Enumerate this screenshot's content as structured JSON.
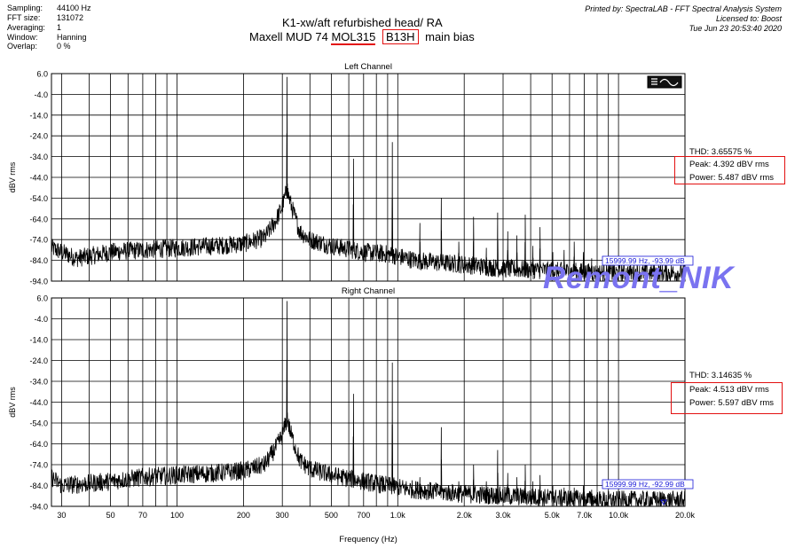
{
  "header": {
    "info": [
      {
        "label": "Sampling:",
        "value": "44100 Hz"
      },
      {
        "label": "FFT size:",
        "value": "131072"
      },
      {
        "label": "Averaging:",
        "value": "1"
      },
      {
        "label": "Window:",
        "value": "Hanning"
      },
      {
        "label": "Overlap:",
        "value": "0 %"
      }
    ],
    "title_line1": "K1-xw/aft refurbished head/ RA",
    "title_line2_prefix": "Maxell MUD 74 ",
    "title_line2_mol": "MOL315",
    "title_line2_b13h": "B13H",
    "title_line2_suffix": "main bias",
    "printed_by": "Printed by: SpectraLAB - FFT Spectral Analysis System",
    "licensed_to": "Licensed to: Boost",
    "timestamp": "Tue Jun 23 20:53:40 2020"
  },
  "watermark": "Remont_NIK",
  "colors": {
    "trace": "#000000",
    "grid": "#000000",
    "highlight_box": "#e31010",
    "watermark": "#7a73f0",
    "cursor_label": "#1a1ad8"
  },
  "chart_data": [
    {
      "type": "line",
      "title": "Left Channel",
      "xlabel": "Frequency (Hz)",
      "ylabel": "dBV rms",
      "x_scale": "log",
      "xlim": [
        27,
        20000
      ],
      "ylim": [
        -94,
        6
      ],
      "yticks": [
        6.0,
        -4.0,
        -14.0,
        -24.0,
        -34.0,
        -44.0,
        -54.0,
        -64.0,
        -74.0,
        -84.0,
        -94.0
      ],
      "ytick_labels": [
        "6.0",
        "-4.0",
        "-14.0",
        "-24.0",
        "-34.0",
        "-44.0",
        "-54.0",
        "-64.0",
        "-74.0",
        "-84.0",
        "-94.0"
      ],
      "grid": true,
      "floor": [
        [
          27,
          -78
        ],
        [
          30,
          -80
        ],
        [
          35,
          -83
        ],
        [
          40,
          -82
        ],
        [
          50,
          -80
        ],
        [
          70,
          -79
        ],
        [
          100,
          -78
        ],
        [
          150,
          -77
        ],
        [
          200,
          -76
        ],
        [
          250,
          -73
        ],
        [
          280,
          -65
        ],
        [
          300,
          -58
        ],
        [
          315,
          -50
        ],
        [
          330,
          -58
        ],
        [
          360,
          -70
        ],
        [
          400,
          -74
        ],
        [
          500,
          -77
        ],
        [
          700,
          -80
        ],
        [
          900,
          -81
        ],
        [
          1000,
          -82
        ],
        [
          1200,
          -84
        ],
        [
          1500,
          -85
        ],
        [
          2000,
          -86
        ],
        [
          3000,
          -88
        ],
        [
          5000,
          -89
        ],
        [
          8000,
          -90
        ],
        [
          12000,
          -90
        ],
        [
          20000,
          -90
        ]
      ],
      "peaks": [
        [
          315,
          4.392
        ],
        [
          630,
          -35
        ],
        [
          945,
          -27
        ],
        [
          1260,
          -66
        ],
        [
          1575,
          -54
        ],
        [
          1890,
          -75
        ],
        [
          2205,
          -63
        ],
        [
          2520,
          -78
        ],
        [
          2835,
          -61
        ],
        [
          3150,
          -70
        ],
        [
          3465,
          -72
        ],
        [
          3780,
          -62
        ],
        [
          4095,
          -77
        ],
        [
          4410,
          -68
        ],
        [
          5040,
          -80
        ],
        [
          5670,
          -79
        ],
        [
          6300,
          -75
        ],
        [
          6930,
          -80
        ],
        [
          7560,
          -83
        ],
        [
          9450,
          -84
        ]
      ],
      "stats": {
        "thd": "THD: 3.65575 %",
        "peak": "Peak: 4.392 dBV rms",
        "power": "Power: 5.487 dBV rms"
      },
      "cursor_readout": "15999.99 Hz, -93.99 dB"
    },
    {
      "type": "line",
      "title": "Right Channel",
      "xlabel": "Frequency (Hz)",
      "ylabel": "dBV rms",
      "x_scale": "log",
      "xlim": [
        27,
        20000
      ],
      "ylim": [
        -94,
        6
      ],
      "yticks": [
        6.0,
        -4.0,
        -14.0,
        -24.0,
        -34.0,
        -44.0,
        -54.0,
        -64.0,
        -74.0,
        -84.0,
        -94.0
      ],
      "ytick_labels": [
        "6.0",
        "-4.0",
        "-14.0",
        "-24.0",
        "-34.0",
        "-44.0",
        "-54.0",
        "-64.0",
        "-74.0",
        "-84.0",
        "-94.0"
      ],
      "xticks": [
        30,
        50,
        70,
        100,
        200,
        300,
        500,
        700,
        1000,
        2000,
        3000,
        5000,
        7000,
        10000,
        20000
      ],
      "xtick_labels": [
        "30",
        "50",
        "70",
        "100",
        "200",
        "300",
        "500",
        "700",
        "1.0k",
        "2.0k",
        "3.0k",
        "5.0k",
        "7.0k",
        "10.0k",
        "20.0k"
      ],
      "grid": true,
      "floor": [
        [
          27,
          -80
        ],
        [
          30,
          -84
        ],
        [
          40,
          -83
        ],
        [
          50,
          -82
        ],
        [
          70,
          -80
        ],
        [
          100,
          -79
        ],
        [
          150,
          -78
        ],
        [
          200,
          -77
        ],
        [
          250,
          -74
        ],
        [
          280,
          -66
        ],
        [
          300,
          -60
        ],
        [
          315,
          -52
        ],
        [
          330,
          -60
        ],
        [
          360,
          -72
        ],
        [
          400,
          -76
        ],
        [
          500,
          -79
        ],
        [
          700,
          -82
        ],
        [
          900,
          -84
        ],
        [
          1000,
          -85
        ],
        [
          1200,
          -86
        ],
        [
          1500,
          -87
        ],
        [
          2000,
          -88
        ],
        [
          3000,
          -89
        ],
        [
          5000,
          -90
        ],
        [
          8000,
          -91
        ],
        [
          12000,
          -91
        ],
        [
          20000,
          -91
        ]
      ],
      "peaks": [
        [
          315,
          4.513
        ],
        [
          630,
          -40
        ],
        [
          945,
          -25
        ],
        [
          1260,
          -80
        ],
        [
          1575,
          -56
        ],
        [
          1890,
          -82
        ],
        [
          2205,
          -74
        ],
        [
          2520,
          -82
        ],
        [
          2835,
          -67
        ],
        [
          3150,
          -78
        ],
        [
          3465,
          -80
        ],
        [
          3780,
          -74
        ],
        [
          4095,
          -82
        ],
        [
          4410,
          -79
        ],
        [
          5040,
          -84
        ],
        [
          5670,
          -85
        ],
        [
          6300,
          -85
        ],
        [
          6930,
          -84
        ],
        [
          7560,
          -86
        ]
      ],
      "stats": {
        "thd": "THD: 3.14635 %",
        "peak": "Peak: 4.513 dBV rms",
        "power": "Power: 5.597 dBV rms"
      },
      "cursor_readout": "15999.99 Hz, -92.99 dB"
    }
  ]
}
